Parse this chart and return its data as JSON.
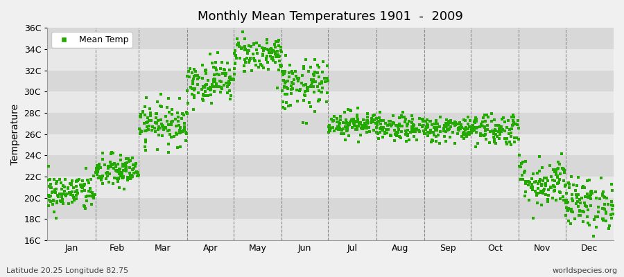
{
  "title": "Monthly Mean Temperatures 1901  -  2009",
  "ylabel": "Temperature",
  "bg_color": "#f0f0f0",
  "plot_bg_color": "#f0f0f0",
  "dot_color": "#22aa00",
  "marker": "s",
  "marker_size": 2.5,
  "ylim": [
    16,
    36
  ],
  "yticks": [
    16,
    18,
    20,
    22,
    24,
    26,
    28,
    30,
    32,
    34,
    36
  ],
  "ytick_labels": [
    "16C",
    "18C",
    "20C",
    "22C",
    "24C",
    "26C",
    "28C",
    "30C",
    "32C",
    "34C",
    "36C"
  ],
  "month_labels": [
    "Jan",
    "Feb",
    "Mar",
    "Apr",
    "May",
    "Jun",
    "Jul",
    "Aug",
    "Sep",
    "Oct",
    "Nov",
    "Dec"
  ],
  "month_days": [
    31,
    28,
    31,
    30,
    31,
    30,
    31,
    31,
    30,
    31,
    30,
    31
  ],
  "bottom_left_text": "Latitude 20.25 Longitude 82.75",
  "bottom_right_text": "worldspecies.org",
  "legend_label": "Mean Temp",
  "num_years": 109,
  "monthly_means": [
    20.5,
    22.5,
    27.0,
    31.0,
    33.5,
    30.5,
    27.0,
    26.5,
    26.5,
    26.5,
    21.5,
    19.5
  ],
  "monthly_stds": [
    0.9,
    0.8,
    1.0,
    1.0,
    0.9,
    1.2,
    0.6,
    0.6,
    0.6,
    0.8,
    1.2,
    1.2
  ]
}
